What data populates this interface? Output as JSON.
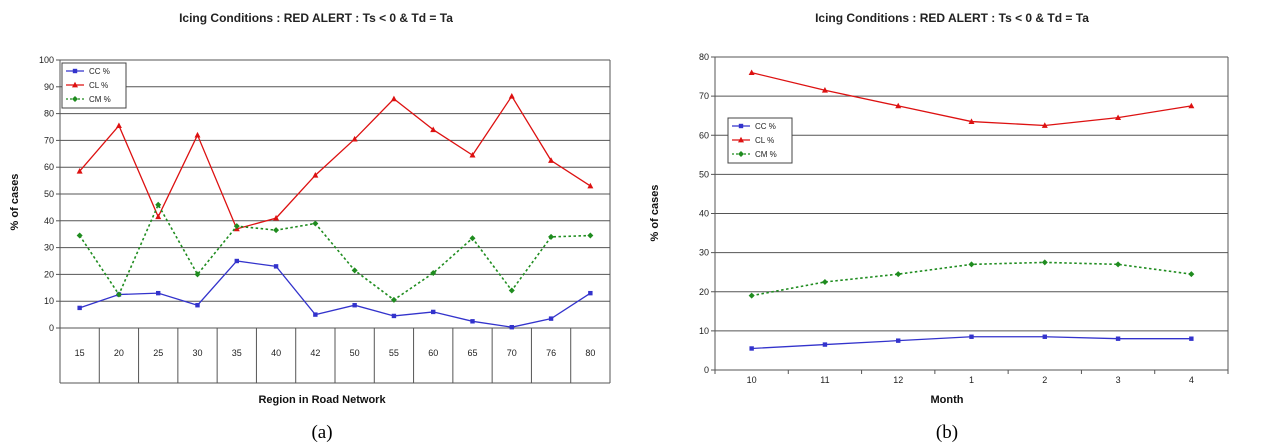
{
  "chart_data": [
    {
      "type": "line",
      "title": "Icing Conditions : RED ALERT : Ts < 0 & Td = Ta",
      "xlabel": "Region in Road Network",
      "ylabel": "% of cases",
      "categories": [
        "15",
        "20",
        "25",
        "30",
        "35",
        "40",
        "42",
        "50",
        "55",
        "60",
        "65",
        "70",
        "76",
        "80"
      ],
      "ylim": [
        0,
        100
      ],
      "yticks": [
        "0",
        "10",
        "20",
        "30",
        "40",
        "50",
        "60",
        "70",
        "80",
        "90",
        "100"
      ],
      "grid": true,
      "legend_position": "top-left",
      "caption": "(a)",
      "series": [
        {
          "name": "CC %",
          "color": "#3333cc",
          "marker": "square",
          "style": "solid",
          "values": [
            7.5,
            12.5,
            13,
            8.5,
            25,
            23,
            5,
            8.5,
            4.5,
            6,
            2.5,
            0.3,
            3.5,
            13
          ]
        },
        {
          "name": "CL %",
          "color": "#dd1111",
          "marker": "triangle",
          "style": "solid",
          "values": [
            58.5,
            75.5,
            41.5,
            72,
            37,
            41,
            57,
            70.5,
            85.5,
            74,
            64.5,
            86.5,
            62.5,
            53
          ]
        },
        {
          "name": "CM %",
          "color": "#1f8c1f",
          "marker": "diamond",
          "style": "dotted",
          "values": [
            34.5,
            12.5,
            46,
            20,
            38,
            36.5,
            39,
            21.5,
            10.5,
            20.5,
            33.5,
            14,
            34,
            34.5
          ]
        }
      ]
    },
    {
      "type": "line",
      "title": "Icing Conditions : RED ALERT : Ts < 0 & Td = Ta",
      "xlabel": "Month",
      "ylabel": "% of cases",
      "categories": [
        "10",
        "11",
        "12",
        "1",
        "2",
        "3",
        "4"
      ],
      "ylim": [
        0,
        80
      ],
      "yticks": [
        "0",
        "10",
        "20",
        "30",
        "40",
        "50",
        "60",
        "70",
        "80"
      ],
      "grid": true,
      "legend_position": "middle-left",
      "caption": "(b)",
      "series": [
        {
          "name": "CC %",
          "color": "#3333cc",
          "marker": "square",
          "style": "solid",
          "values": [
            5.5,
            6.5,
            7.5,
            8.5,
            8.5,
            8,
            8
          ]
        },
        {
          "name": "CL %",
          "color": "#dd1111",
          "marker": "triangle",
          "style": "solid",
          "values": [
            76,
            71.5,
            67.5,
            63.5,
            62.5,
            64.5,
            67.5
          ]
        },
        {
          "name": "CM %",
          "color": "#1f8c1f",
          "marker": "diamond",
          "style": "dotted",
          "values": [
            19,
            22.5,
            24.5,
            27,
            27.5,
            27,
            24.5
          ]
        }
      ]
    }
  ]
}
